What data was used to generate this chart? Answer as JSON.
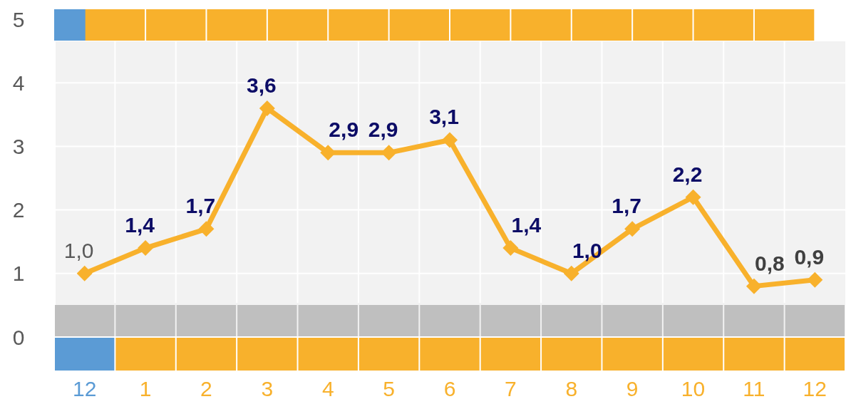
{
  "chart_data": {
    "type": "line",
    "categories": [
      "12",
      "1",
      "2",
      "3",
      "4",
      "5",
      "6",
      "7",
      "8",
      "9",
      "10",
      "11",
      "12"
    ],
    "series": [
      {
        "color": "#f8b12c",
        "values": [
          1.0,
          1.4,
          1.7,
          3.6,
          2.9,
          2.9,
          3.1,
          1.4,
          1.0,
          1.7,
          2.2,
          0.8,
          0.9
        ],
        "value_labels": [
          "1,0",
          "1,4",
          "1,7",
          "3,6",
          "2,9",
          "2,9",
          "3,1",
          "1,4",
          "1,0",
          "1,7",
          "2,2",
          "0,8",
          "0,9"
        ]
      }
    ],
    "ylim": [
      0,
      5
    ],
    "yticks": [
      0,
      1,
      2,
      3,
      4,
      5
    ],
    "grid": true,
    "marker": "diamond",
    "line_style": "solid"
  }
}
